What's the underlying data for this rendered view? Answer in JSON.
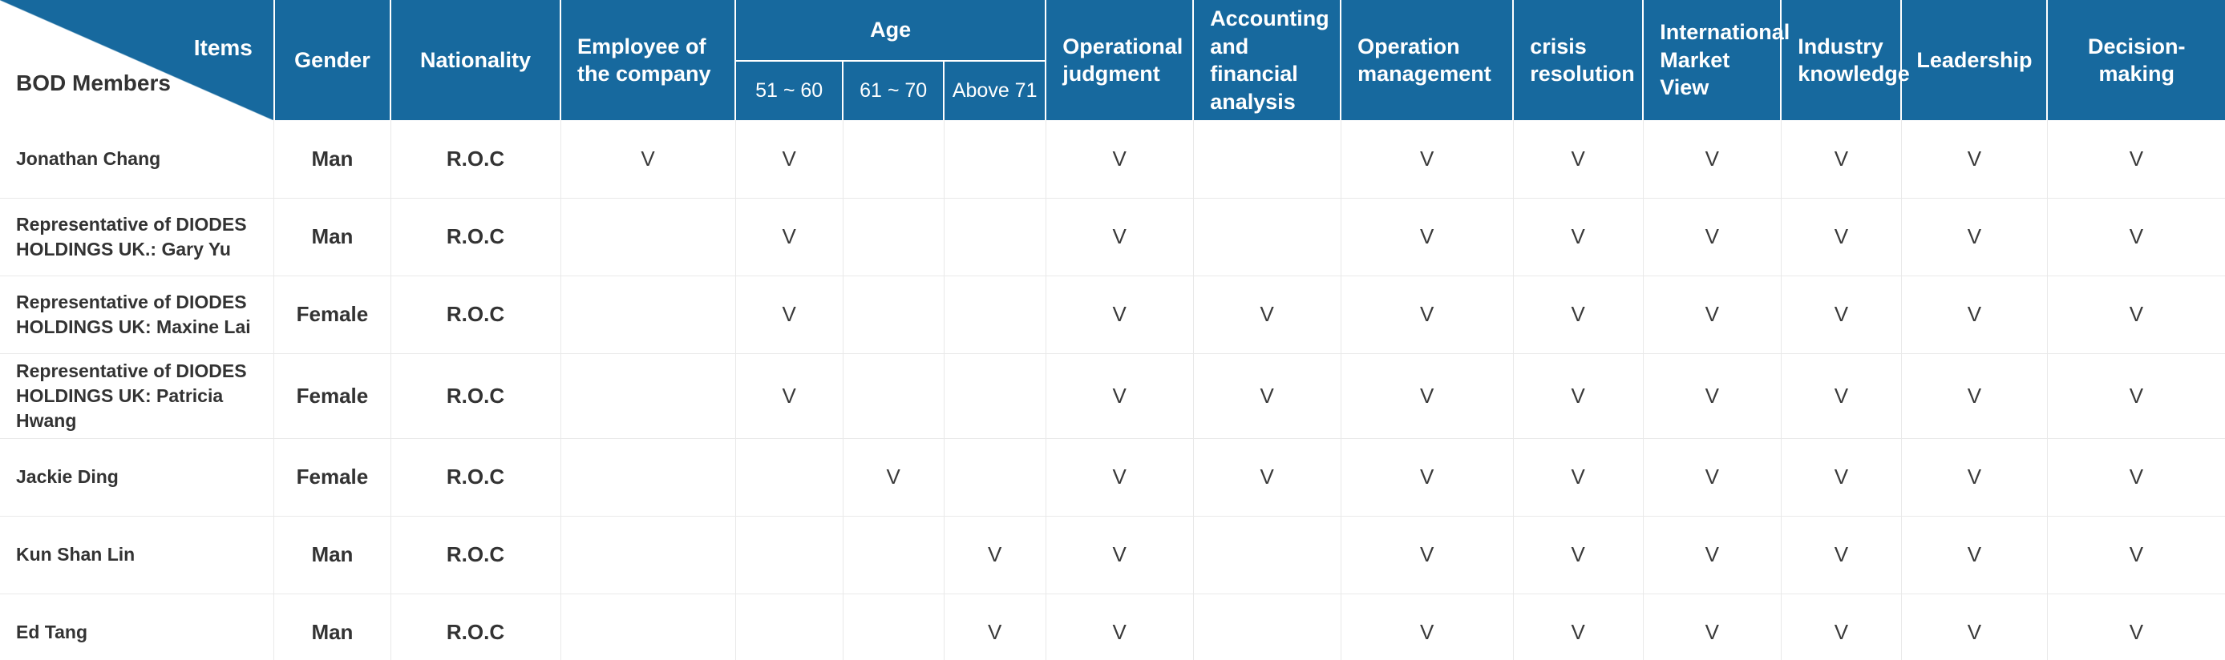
{
  "table": {
    "corner": {
      "top_label": "Items",
      "bottom_label": "BOD Members"
    },
    "columns": {
      "gender": "Gender",
      "nationality": "Nationality",
      "employee": "Employee of the company",
      "age_group": "Age",
      "age_51_60": "51 ~ 60",
      "age_61_70": "61 ~ 70",
      "age_above_71": "Above 71",
      "operational_judgment": "Operational judgment",
      "accounting": "Accounting and financial analysis",
      "operation_management": "Operation management",
      "crisis_resolution": "crisis resolution",
      "international_market_view": "International Market View",
      "industry_knowledge": "Industry knowledge",
      "leadership": "Leadership",
      "decision_making": "Decision-making"
    },
    "mark_columns_order": [
      "employee",
      "age_51_60",
      "age_61_70",
      "age_above_71",
      "operational_judgment",
      "accounting",
      "operation_management",
      "crisis_resolution",
      "international_market_view",
      "industry_knowledge",
      "leadership",
      "decision_making"
    ],
    "check_glyph": "V",
    "rows": [
      {
        "name": "Jonathan Chang",
        "gender": "Man",
        "nationality": "R.O.C",
        "marks": [
          "V",
          "V",
          "",
          "",
          "V",
          "",
          "V",
          "V",
          "V",
          "V",
          "V",
          "V"
        ]
      },
      {
        "name": "Representative of DIODES HOLDINGS UK.: Gary Yu",
        "gender": "Man",
        "nationality": "R.O.C",
        "marks": [
          "",
          "V",
          "",
          "",
          "V",
          "",
          "V",
          "V",
          "V",
          "V",
          "V",
          "V"
        ]
      },
      {
        "name": "Representative of DIODES HOLDINGS UK: Maxine Lai",
        "gender": "Female",
        "nationality": "R.O.C",
        "marks": [
          "",
          "V",
          "",
          "",
          "V",
          "V",
          "V",
          "V",
          "V",
          "V",
          "V",
          "V"
        ]
      },
      {
        "name": "Representative of DIODES HOLDINGS UK: Patricia Hwang",
        "gender": "Female",
        "nationality": "R.O.C",
        "marks": [
          "",
          "V",
          "",
          "",
          "V",
          "V",
          "V",
          "V",
          "V",
          "V",
          "V",
          "V"
        ]
      },
      {
        "name": "Jackie Ding",
        "gender": "Female",
        "nationality": "R.O.C",
        "marks": [
          "",
          "",
          "V",
          "",
          "V",
          "V",
          "V",
          "V",
          "V",
          "V",
          "V",
          "V"
        ]
      },
      {
        "name": "Kun Shan Lin",
        "gender": "Man",
        "nationality": "R.O.C",
        "marks": [
          "",
          "",
          "",
          "V",
          "V",
          "",
          "V",
          "V",
          "V",
          "V",
          "V",
          "V"
        ]
      },
      {
        "name": "Ed Tang",
        "gender": "Man",
        "nationality": "R.O.C",
        "marks": [
          "",
          "",
          "",
          "V",
          "V",
          "",
          "V",
          "V",
          "V",
          "V",
          "V",
          "V"
        ]
      }
    ]
  },
  "colors": {
    "header_bg": "#17699E",
    "header_text": "#FFFFFF",
    "body_text": "#333333",
    "grid_line": "#E9E9E9"
  }
}
